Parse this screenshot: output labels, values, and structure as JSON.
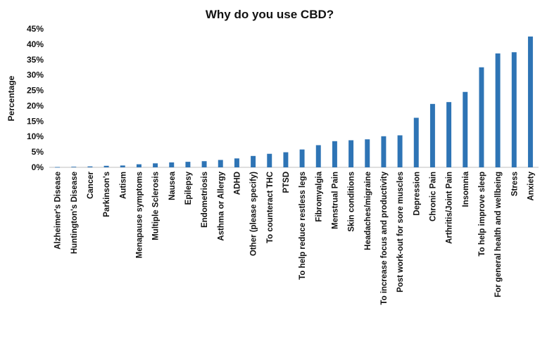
{
  "chart_data": {
    "type": "bar",
    "title": "Why do you use CBD?",
    "xlabel": "",
    "ylabel": "Percentage",
    "ylim": [
      0,
      45
    ],
    "yticks": [
      "0%",
      "5%",
      "10%",
      "15%",
      "20%",
      "25%",
      "30%",
      "35%",
      "40%",
      "45%"
    ],
    "ytick_values": [
      0,
      5,
      10,
      15,
      20,
      25,
      30,
      35,
      40,
      45
    ],
    "grid": false,
    "legend": "none",
    "bar_color": "#2e74b5",
    "categories": [
      "Alzheimer's Disease",
      "Huntington's Disease",
      "Cancer",
      "Parkinson's",
      "Autism",
      "Menapause symptoms",
      "Multiple Sclerosis",
      "Nausea",
      "Epilepsy",
      "Endometriosis",
      "Asthma or Allergy",
      "ADHD",
      "Other (please specify)",
      "To counteract THC",
      "PTSD",
      "To help reduce restless legs",
      "Fibromyalgia",
      "Menstrual Pain",
      "Skin conditions",
      "Headaches/migraine",
      "To increase focus and productivity",
      "Post work-out for sore muscles",
      "Depression",
      "Chronic Pain",
      "Arthritis/Joint Pain",
      "Insomnia",
      "To help improve sleep",
      "For general health and wellbeing",
      "Stress",
      "Anxiety"
    ],
    "values": [
      0.1,
      0.2,
      0.3,
      0.5,
      0.6,
      1.0,
      1.3,
      1.6,
      1.8,
      2.0,
      2.4,
      2.9,
      3.7,
      4.4,
      4.9,
      5.8,
      7.2,
      8.5,
      8.8,
      9.1,
      10.1,
      10.4,
      16.1,
      20.6,
      21.2,
      24.5,
      32.5,
      37.0,
      37.4,
      42.5
    ]
  }
}
